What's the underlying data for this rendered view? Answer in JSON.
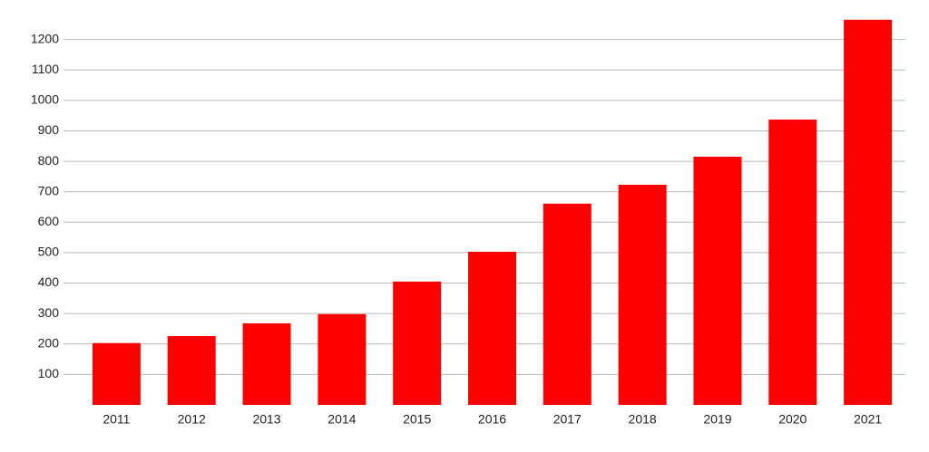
{
  "chart_data": {
    "type": "bar",
    "categories": [
      "2011",
      "2012",
      "2013",
      "2014",
      "2015",
      "2016",
      "2017",
      "2018",
      "2019",
      "2020",
      "2021"
    ],
    "values": [
      203,
      226,
      268,
      298,
      405,
      503,
      661,
      723,
      815,
      937,
      1265
    ],
    "color": "#ff0000",
    "ylim": [
      0,
      1300
    ],
    "yticks": [
      100,
      200,
      300,
      400,
      500,
      600,
      700,
      800,
      900,
      1000,
      1100,
      1200
    ],
    "grid": true
  }
}
